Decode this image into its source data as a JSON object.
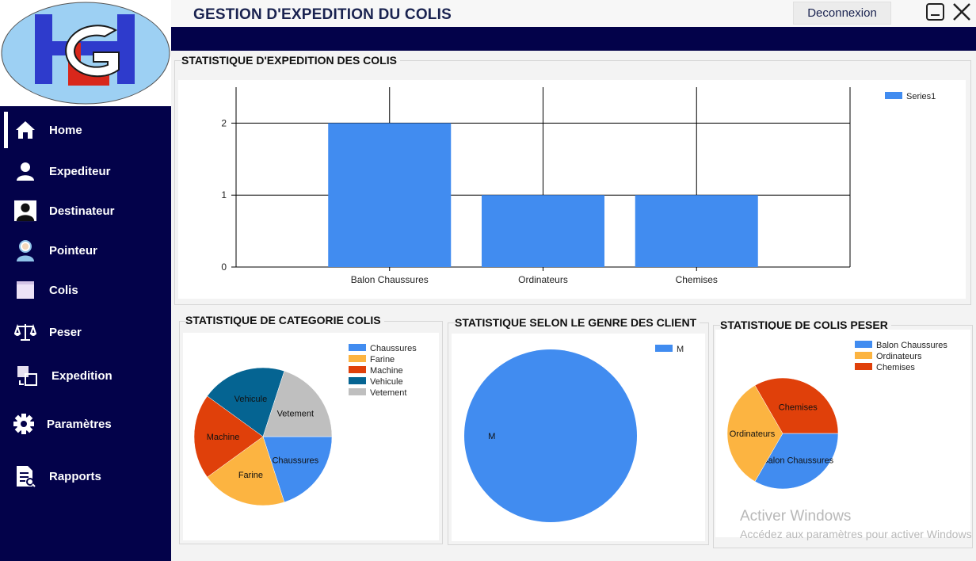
{
  "header": {
    "title": "GESTION D'EXPEDITION DU COLIS",
    "logout_label": "Deconnexion"
  },
  "logo": {
    "text": "LGH"
  },
  "sidebar": {
    "items": [
      {
        "label": "Home",
        "icon": "home-icon",
        "active": true
      },
      {
        "label": "Expediteur",
        "icon": "user-icon"
      },
      {
        "label": "Destinateur",
        "icon": "user-dark-icon"
      },
      {
        "label": "Pointeur",
        "icon": "worker-icon"
      },
      {
        "label": "Colis",
        "icon": "box-icon"
      },
      {
        "label": "Peser",
        "icon": "scale-icon"
      },
      {
        "label": "Expedition",
        "icon": "transfer-icon"
      },
      {
        "label": "Paramètres",
        "icon": "gear-icon"
      },
      {
        "label": "Rapports",
        "icon": "report-icon"
      }
    ]
  },
  "panels": {
    "expedition": {
      "title": "STATISTIQUE D'EXPEDITION DES COLIS"
    },
    "categorie": {
      "title": "STATISTIQUE DE CATEGORIE COLIS"
    },
    "genre": {
      "title": "STATISTIQUE SELON LE GENRE DES CLIENT"
    },
    "peser": {
      "title": "STATISTIQUE DE COLIS PESER"
    }
  },
  "watermark": {
    "line1": "Activer Windows",
    "line2": "Accédez aux paramètres pour activer Windows"
  },
  "colors": {
    "sidebar": "#03024a",
    "blue": "#418cf0",
    "orange": "#fcb441",
    "red": "#e0400a",
    "teal": "#056492",
    "gray": "#bfbfbf"
  },
  "chart_data": [
    {
      "type": "bar",
      "categories": [
        "Balon Chaussures",
        "Ordinateurs",
        "Chemises"
      ],
      "series": [
        {
          "name": "Series1",
          "values": [
            2,
            1,
            1
          ],
          "color": "#418cf0"
        }
      ],
      "ylim": [
        0,
        2.5
      ],
      "yticks": [
        0,
        1,
        2
      ],
      "legend_position": "top-right",
      "grid": true
    },
    {
      "type": "pie",
      "labels": [
        "Chaussures",
        "Farine",
        "Machine",
        "Vehicule",
        "Vetement"
      ],
      "values": [
        1,
        1,
        1,
        1,
        1
      ],
      "colors": [
        "#418cf0",
        "#fcb441",
        "#e0400a",
        "#056492",
        "#bfbfbf"
      ],
      "legend_position": "top-right"
    },
    {
      "type": "pie",
      "labels": [
        "M"
      ],
      "values": [
        1
      ],
      "colors": [
        "#418cf0"
      ],
      "legend_position": "top-right"
    },
    {
      "type": "pie",
      "labels": [
        "Balon Chaussures",
        "Ordinateurs",
        "Chemises"
      ],
      "values": [
        1,
        1,
        1
      ],
      "colors": [
        "#418cf0",
        "#fcb441",
        "#e0400a"
      ],
      "legend_position": "top-right"
    }
  ]
}
